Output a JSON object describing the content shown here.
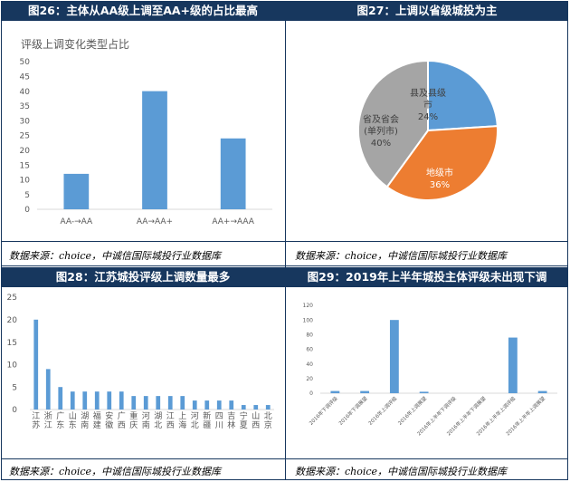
{
  "source_text": "数据来源：choice，中诚信国际城投行业数据库",
  "chart_data": [
    {
      "type": "bar",
      "figure_title": "图26：主体从AA级上调至AA+级的占比最高",
      "title": "评级上调变化类型占比",
      "categories": [
        "AA-→AA",
        "AA→AA+",
        "AA+→AAA"
      ],
      "values": [
        12,
        40,
        24
      ],
      "ylim": [
        0,
        50
      ],
      "yticks": [
        0,
        5,
        10,
        15,
        20,
        25,
        30,
        35,
        40,
        45,
        50
      ],
      "color": "#5b9bd5",
      "grid": false
    },
    {
      "type": "pie",
      "figure_title": "图27：上调以省级城投为主",
      "slices": [
        {
          "name": "县及县级市",
          "value": 24,
          "label": "24%",
          "color": "#5b9bd5"
        },
        {
          "name": "地级市",
          "value": 36,
          "label": "36%",
          "color": "#ed7d31"
        },
        {
          "name": "省及省会(单列市)",
          "value": 40,
          "label": "40%",
          "color": "#a5a5a5"
        }
      ]
    },
    {
      "type": "bar",
      "figure_title": "图28：江苏城投评级上调数量最多",
      "categories": [
        "江苏",
        "浙江",
        "广东",
        "山东",
        "湖南",
        "福建",
        "安徽",
        "广西",
        "重庆",
        "河南",
        "湖北",
        "江西",
        "上海",
        "河北",
        "新疆",
        "四川",
        "吉林",
        "宁夏",
        "山西",
        "北京"
      ],
      "values": [
        20,
        9,
        5,
        4,
        4,
        4,
        4,
        4,
        3,
        3,
        3,
        3,
        3,
        2,
        2,
        2,
        2,
        1,
        1,
        1
      ],
      "ylim": [
        0,
        25
      ],
      "yticks": [
        0,
        5,
        10,
        15,
        20,
        25
      ],
      "color": "#5b9bd5",
      "grid": false
    },
    {
      "type": "bar",
      "figure_title": "图29：2019年上半年城投主体评级未出现下调",
      "categories": [
        "2016年下调评级",
        "2016年下调展望",
        "2016年上调评级",
        "2016年上调展望",
        "2016年上半年下调评级",
        "2016年上半年下调展望",
        "2016年上半年上调评级",
        "2016年上半年上调展望"
      ],
      "values": [
        3,
        3,
        100,
        2,
        0,
        0,
        76,
        3
      ],
      "ylim": [
        0,
        120
      ],
      "yticks": [
        0,
        20,
        40,
        60,
        80,
        100,
        120
      ],
      "color": "#5b9bd5",
      "grid": false
    }
  ]
}
